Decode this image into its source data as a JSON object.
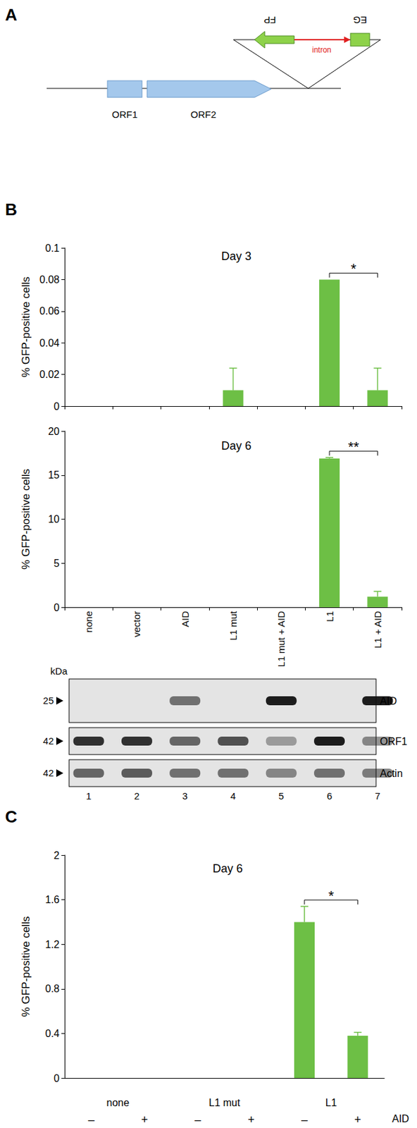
{
  "panel_labels": [
    "A",
    "B",
    "C"
  ],
  "diagram": {
    "orfs": [
      "ORF1",
      "ORF2"
    ],
    "reporter": [
      "FP",
      "EG"
    ],
    "intron": "intron"
  },
  "chart_data": [
    {
      "type": "bar",
      "title": "Day 3",
      "ylabel": "% GFP-positive cells",
      "categories": [
        "none",
        "vector",
        "AID",
        "L1 mut",
        "L1 mut + AID",
        "L1",
        "L1 + AID"
      ],
      "values": [
        0,
        0,
        0,
        0.01,
        0,
        0.08,
        0.01
      ],
      "errors": [
        0,
        0,
        0,
        0.014,
        0,
        0,
        0.014
      ],
      "color": "#6dbf45",
      "ylim": [
        0,
        0.1
      ],
      "yticks": [
        0,
        0.02,
        0.04,
        0.06,
        0.08,
        0.1
      ],
      "grid": false,
      "tick_labels": "y",
      "annotations": [
        {
          "from": 5,
          "to": 6,
          "label": "*"
        }
      ]
    },
    {
      "type": "bar",
      "title": "Day 6",
      "ylabel": "% GFP-positive cells",
      "categories": [
        "none",
        "vector",
        "AID",
        "L1 mut",
        "L1 mut + AID",
        "L1",
        "L1 + AID"
      ],
      "values": [
        0,
        0,
        0,
        0,
        0,
        16.9,
        1.2
      ],
      "errors": [
        0,
        0,
        0,
        0,
        0,
        0.1,
        0.6
      ],
      "color": "#6dbf45",
      "ylim": [
        0,
        20
      ],
      "yticks": [
        0,
        5,
        10,
        15,
        20
      ],
      "grid": false,
      "annotations": [
        {
          "from": 5,
          "to": 6,
          "label": "**"
        }
      ]
    },
    {
      "type": "bar",
      "title": "Day 6",
      "ylabel": "% GFP-positive cells",
      "categories": [
        "–",
        "+",
        "–",
        "+",
        "–",
        "+"
      ],
      "groups": [
        "none",
        "L1 mut",
        "L1"
      ],
      "xlabel": "AID",
      "values": [
        0,
        0,
        0,
        0,
        1.4,
        0.38
      ],
      "errors": [
        0,
        0,
        0,
        0,
        0.14,
        0.03
      ],
      "color": "#6dbf45",
      "ylim": [
        0,
        2
      ],
      "yticks": [
        0,
        0.4,
        0.8,
        1.2,
        1.6,
        2
      ],
      "grid": false,
      "annotations": [
        {
          "from": 4,
          "to": 5,
          "label": "*"
        }
      ]
    }
  ],
  "blot": {
    "unit": "kDa",
    "lanes": [
      1,
      2,
      3,
      4,
      5,
      6,
      7
    ],
    "rows": [
      {
        "label": "AID",
        "size": 25,
        "bands": [
          0,
          0,
          0.55,
          0,
          0.95,
          0,
          0.95
        ]
      },
      {
        "label": "ORF1",
        "size": 42,
        "bands": [
          0.85,
          0.85,
          0.6,
          0.7,
          0.35,
          0.95,
          0.45
        ]
      },
      {
        "label": "Actin",
        "size": 42,
        "bands": [
          0.6,
          0.65,
          0.55,
          0.55,
          0.45,
          0.55,
          0.5
        ]
      }
    ]
  }
}
